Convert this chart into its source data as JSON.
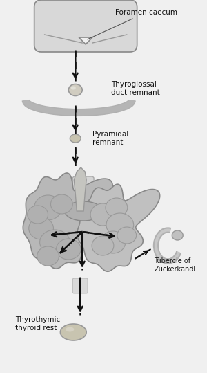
{
  "bg_color": "#f0f0f0",
  "fig_width": 3.0,
  "fig_height": 5.39,
  "dpi": 100,
  "labels": {
    "foramen_caecum": "Foramen caecum",
    "thyroglossal": "Thyroglossal\nduct remnant",
    "pyramidal": "Pyramidal\nremnant",
    "tubercle": "Tubercle of\nZuckerkandl",
    "thyrothymic": "Thyrothymic\nthyroid rest"
  },
  "colors": {
    "anatomy_fill": "#c8c8c8",
    "anatomy_edge": "#888888",
    "thyroid_fill": "#b8b8b8",
    "thyroid_edge": "#777777",
    "nodule_fill": "#d0ccc0",
    "nodule_edge": "#999999",
    "arrow_color": "#111111",
    "text_color": "#111111",
    "tongue_fill": "#d0d0d0",
    "bone_fill": "#cccccc",
    "hyoid_fill": "#b0b0b0",
    "line_color": "#555555"
  }
}
